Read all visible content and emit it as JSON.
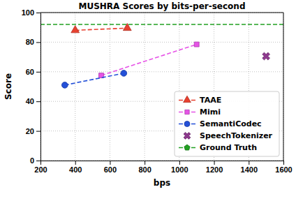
{
  "chart_data": {
    "type": "line",
    "title": "MUSHRA Scores by bits-per-second",
    "x_label": "bps",
    "y_label": "Score",
    "xlim": [
      200,
      1600
    ],
    "xticks": [
      200,
      400,
      600,
      800,
      1000,
      1200,
      1400,
      1600
    ],
    "ylim": [
      0,
      100
    ],
    "yticks": [
      0,
      20,
      40,
      60,
      80,
      100
    ],
    "grid": true,
    "legend": "lower right",
    "series": [
      {
        "name": "TAAE",
        "color": "#e8402f",
        "marker": "triangle",
        "line_style": "dashed",
        "x": [
          400,
          700
        ],
        "values": [
          88,
          89.5
        ]
      },
      {
        "name": "Mimi",
        "color": "#e653e6",
        "marker": "square",
        "line_style": "dashed",
        "x": [
          550,
          1100
        ],
        "values": [
          57.5,
          78.5
        ]
      },
      {
        "name": "SemantiCodec",
        "color": "#2450d8",
        "marker": "circle",
        "line_style": "dashed",
        "x": [
          340,
          680
        ],
        "values": [
          51,
          59
        ]
      },
      {
        "name": "SpeechTokenizer",
        "color": "#8e3a8e",
        "marker": "x",
        "line_style": "none",
        "x": [
          1500
        ],
        "values": [
          70.5
        ]
      },
      {
        "name": "Ground Truth",
        "color": "#22a022",
        "marker": "pentagon",
        "line_style": "dashed",
        "type": "hline",
        "values": [
          92
        ]
      }
    ]
  }
}
